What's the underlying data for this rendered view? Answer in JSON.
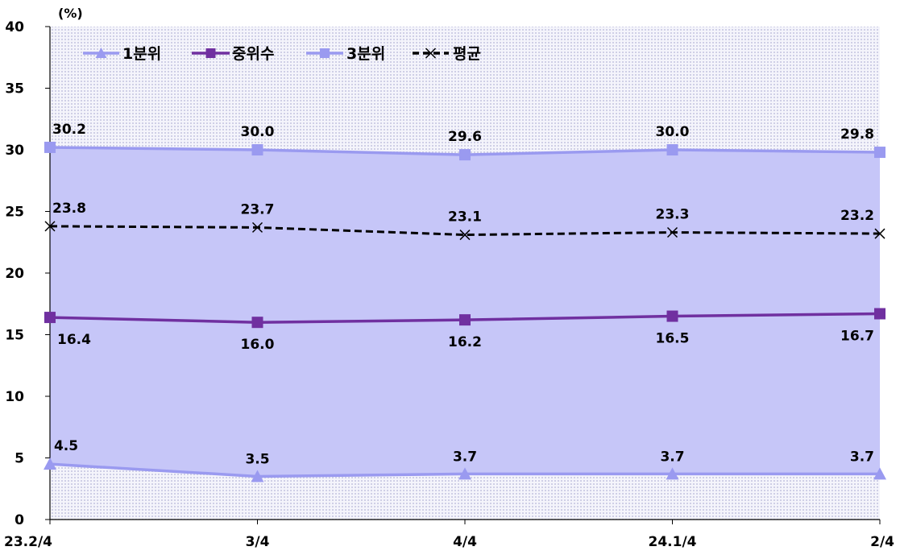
{
  "chart_data": {
    "type": "line",
    "unit": "(%)",
    "categories": [
      "23.2/4",
      "3/4",
      "4/4",
      "24.1/4",
      "2/4"
    ],
    "ylim": [
      0,
      40
    ],
    "yticks": [
      0,
      5,
      10,
      15,
      20,
      25,
      30,
      35,
      40
    ],
    "grid": false,
    "legend_position": "top-left",
    "shaded_band": {
      "between": [
        "1분위",
        "3분위"
      ],
      "color": "#c6c6f8"
    },
    "series": [
      {
        "name": "1분위",
        "values": [
          4.5,
          3.5,
          3.7,
          3.7,
          3.7
        ],
        "labels": [
          "4.5",
          "3.5",
          "3.7",
          "3.7",
          "3.7"
        ],
        "color": "#9a9af0",
        "marker": "triangle",
        "line_style": "solid"
      },
      {
        "name": "중위수",
        "values": [
          16.4,
          16.0,
          16.2,
          16.5,
          16.7
        ],
        "labels": [
          "16.4",
          "16.0",
          "16.2",
          "16.5",
          "16.7"
        ],
        "color": "#7030a0",
        "marker": "square",
        "line_style": "solid"
      },
      {
        "name": "3분위",
        "values": [
          30.2,
          30.0,
          29.6,
          30.0,
          29.8
        ],
        "labels": [
          "30.2",
          "30.0",
          "29.6",
          "30.0",
          "29.8"
        ],
        "color": "#9a9af0",
        "marker": "square",
        "line_style": "solid"
      },
      {
        "name": "평균",
        "values": [
          23.8,
          23.7,
          23.1,
          23.3,
          23.2
        ],
        "labels": [
          "23.8",
          "23.7",
          "23.1",
          "23.3",
          "23.2"
        ],
        "color": "#000000",
        "marker": "x",
        "line_style": "dashed"
      }
    ]
  }
}
